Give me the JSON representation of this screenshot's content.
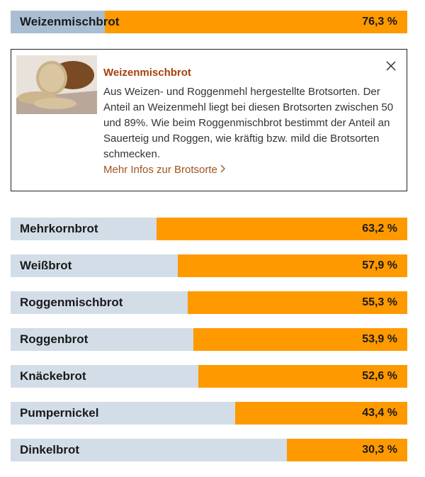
{
  "chart_data": {
    "type": "bar",
    "orientation": "horizontal",
    "categories": [
      "Weizenmischbrot",
      "Mehrkornbrot",
      "Weißbrot",
      "Roggenmischbrot",
      "Roggenbrot",
      "Knäckebrot",
      "Pumpernickel",
      "Dinkelbrot"
    ],
    "values": [
      76.3,
      63.2,
      57.9,
      55.3,
      53.9,
      52.6,
      43.4,
      30.3
    ],
    "value_labels": [
      "76,3 %",
      "63,2 %",
      "57,9 %",
      "55,3 %",
      "53,9 %",
      "52,6 %",
      "43,4 %",
      "30,3 %"
    ],
    "xlim": [
      0,
      100
    ],
    "color": "#ff9900",
    "background_color": "#d2dde7",
    "selected_index": 0,
    "selected_background_color": "#a9bed3"
  },
  "info_panel": {
    "title": "Weizenmischbrot",
    "text": "Aus Weizen- und Roggenmehl hergestellte Brotsorten. Der Anteil an Weizenmehl liegt bei diesen Brotsorten zwischen 50 und 89%. Wie beim Roggenmischbrot bestimmt der Anteil an Sauerteig und Roggen, wie kräftig bzw. mild die Brotsorten schmecken.",
    "link": "Mehr Infos zur Brotsorte"
  }
}
